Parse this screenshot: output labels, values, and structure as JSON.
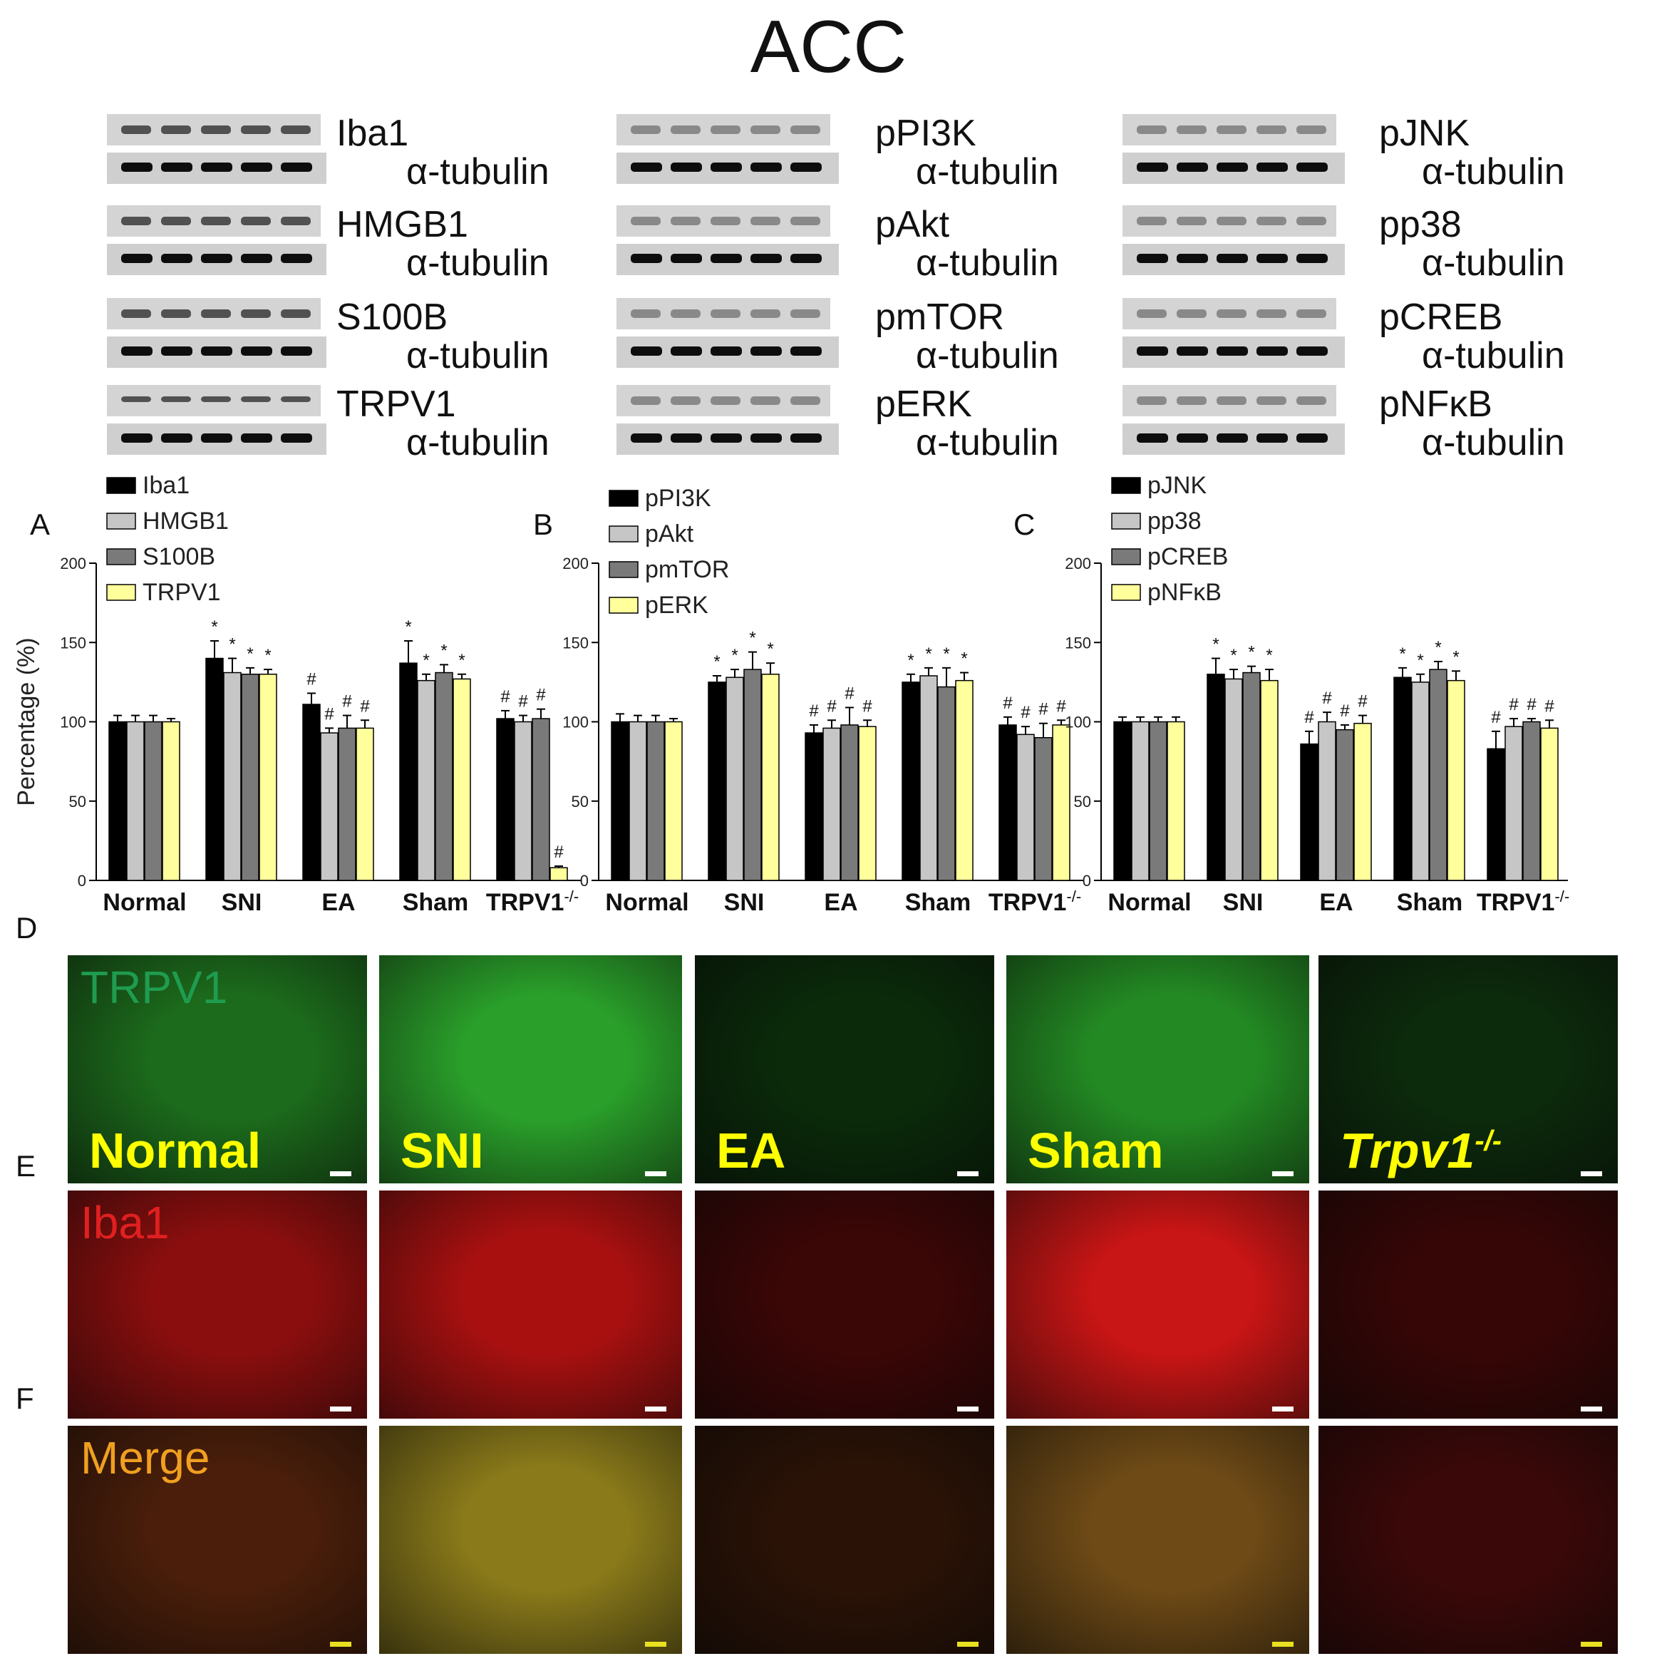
{
  "title": "ACC",
  "blot_columns": [
    {
      "rows": [
        {
          "name": "Iba1",
          "loading": "α-tubulin"
        },
        {
          "name": "HMGB1",
          "loading": "α-tubulin"
        },
        {
          "name": "S100B",
          "loading": "α-tubulin"
        },
        {
          "name": "TRPV1",
          "loading": "α-tubulin"
        }
      ]
    },
    {
      "rows": [
        {
          "name": "pPI3K",
          "loading": "α-tubulin"
        },
        {
          "name": "pAkt",
          "loading": "α-tubulin"
        },
        {
          "name": "pmTOR",
          "loading": "α-tubulin"
        },
        {
          "name": "pERK",
          "loading": "α-tubulin"
        }
      ]
    },
    {
      "rows": [
        {
          "name": "pJNK",
          "loading": "α-tubulin"
        },
        {
          "name": "pp38",
          "loading": "α-tubulin"
        },
        {
          "name": "pCREB",
          "loading": "α-tubulin"
        },
        {
          "name": "pNFκB",
          "loading": "α-tubulin"
        }
      ]
    }
  ],
  "colors": {
    "black": "#000000",
    "lightgray": "#c6c6c6",
    "darkgray": "#7a7a7a",
    "yellow": "#ffff9c"
  },
  "chart_data": [
    {
      "type": "bar",
      "panel": "A",
      "categories": [
        "Normal",
        "SNI",
        "EA",
        "Sham",
        "TRPV1-/-"
      ],
      "ylabel": "Percentage (%)",
      "ylim": [
        0,
        200
      ],
      "yticks": [
        0,
        50,
        100,
        150,
        200
      ],
      "series": [
        {
          "name": "Iba1",
          "values": [
            100,
            140,
            111,
            137,
            102
          ],
          "errors": [
            4,
            11,
            7,
            14,
            5
          ],
          "marks": [
            "",
            "*",
            "#",
            "*",
            "#"
          ]
        },
        {
          "name": "HMGB1",
          "values": [
            100,
            131,
            93,
            126,
            100
          ],
          "errors": [
            4,
            9,
            3,
            4,
            4
          ],
          "marks": [
            "",
            "*",
            "#",
            "*",
            "#"
          ]
        },
        {
          "name": "S100B",
          "values": [
            100,
            130,
            96,
            131,
            102
          ],
          "errors": [
            4,
            4,
            8,
            5,
            6
          ],
          "marks": [
            "",
            "*",
            "#",
            "*",
            "#"
          ]
        },
        {
          "name": "TRPV1",
          "values": [
            100,
            130,
            96,
            127,
            8
          ],
          "errors": [
            2,
            3,
            5,
            3,
            1
          ],
          "marks": [
            "",
            "*",
            "#",
            "*",
            "#"
          ]
        }
      ]
    },
    {
      "type": "bar",
      "panel": "B",
      "categories": [
        "Normal",
        "SNI",
        "EA",
        "Sham",
        "TRPV1-/-"
      ],
      "ylim": [
        0,
        200
      ],
      "yticks": [
        0,
        50,
        100,
        150,
        200
      ],
      "series": [
        {
          "name": "pPI3K",
          "values": [
            100,
            125,
            93,
            125,
            98
          ],
          "errors": [
            5,
            4,
            5,
            5,
            5
          ],
          "marks": [
            "",
            "*",
            "#",
            "*",
            "#"
          ]
        },
        {
          "name": "pAkt",
          "values": [
            100,
            128,
            96,
            129,
            92
          ],
          "errors": [
            4,
            5,
            5,
            5,
            5
          ],
          "marks": [
            "",
            "*",
            "#",
            "*",
            "#"
          ]
        },
        {
          "name": "pmTOR",
          "values": [
            100,
            133,
            98,
            122,
            90
          ],
          "errors": [
            4,
            11,
            11,
            12,
            9
          ],
          "marks": [
            "",
            "*",
            "#",
            "*",
            "#"
          ]
        },
        {
          "name": "pERK",
          "values": [
            100,
            130,
            97,
            126,
            98
          ],
          "errors": [
            2,
            7,
            4,
            5,
            3
          ],
          "marks": [
            "",
            "*",
            "#",
            "*",
            "#"
          ]
        }
      ]
    },
    {
      "type": "bar",
      "panel": "C",
      "categories": [
        "Normal",
        "SNI",
        "EA",
        "Sham",
        "TRPV1-/-"
      ],
      "ylim": [
        0,
        200
      ],
      "yticks": [
        0,
        50,
        100,
        150,
        200
      ],
      "series": [
        {
          "name": "pJNK",
          "values": [
            100,
            130,
            86,
            128,
            83
          ],
          "errors": [
            3,
            10,
            8,
            6,
            11
          ],
          "marks": [
            "",
            "*",
            "#",
            "*",
            "#"
          ]
        },
        {
          "name": "pp38",
          "values": [
            100,
            127,
            100,
            125,
            97
          ],
          "errors": [
            3,
            6,
            6,
            5,
            5
          ],
          "marks": [
            "",
            "*",
            "#",
            "*",
            "#"
          ]
        },
        {
          "name": "pCREB",
          "values": [
            100,
            131,
            95,
            133,
            100
          ],
          "errors": [
            3,
            4,
            3,
            5,
            2
          ],
          "marks": [
            "",
            "*",
            "#",
            "*",
            "#"
          ]
        },
        {
          "name": "pNFκB",
          "values": [
            100,
            126,
            99,
            126,
            96
          ],
          "errors": [
            3,
            7,
            5,
            6,
            5
          ],
          "marks": [
            "",
            "*",
            "#",
            "*",
            "#"
          ]
        }
      ]
    }
  ],
  "panel_letters": [
    "A",
    "B",
    "C",
    "D",
    "E",
    "F"
  ],
  "micrograph_rows": [
    {
      "label": "TRPV1",
      "label_color": "#1f9c4f",
      "groups": [
        "Normal",
        "SNI",
        "EA",
        "Sham",
        "Trpv1"
      ],
      "group_sup": "-/-"
    },
    {
      "label": "Iba1",
      "label_color": "#e02020"
    },
    {
      "label": "Merge",
      "label_color": "#f0a020"
    }
  ]
}
